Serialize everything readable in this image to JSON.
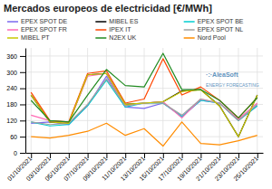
{
  "chart_data": {
    "type": "line",
    "title": "Mercados europeos de electricidad [€/MWh]",
    "categories": [
      "01/10/2021",
      "03/10/2021",
      "05/10/2021",
      "07/10/2021",
      "09/10/2021",
      "11/10/2021",
      "13/10/2021",
      "15/10/2021",
      "17/10/2021",
      "19/10/2021",
      "21/10/2021",
      "23/10/2021",
      "25/10/2021"
    ],
    "series": [
      {
        "name": "EPEX SPOT DE",
        "color": "#7b68ee",
        "values": [
          110,
          115,
          105,
          175,
          285,
          170,
          165,
          185,
          135,
          195,
          185,
          120,
          175
        ]
      },
      {
        "name": "MIBEL ES",
        "color": "#000000",
        "values": [
          215,
          115,
          110,
          290,
          295,
          180,
          185,
          190,
          230,
          235,
          175,
          60,
          215
        ]
      },
      {
        "name": "EPEX SPOT BE",
        "color": "#00ced1",
        "values": [
          115,
          100,
          105,
          175,
          270,
          170,
          185,
          185,
          135,
          195,
          185,
          120,
          175
        ]
      },
      {
        "name": "EPEX SPOT FR",
        "color": "#ff69b4",
        "values": [
          140,
          120,
          110,
          285,
          295,
          175,
          185,
          190,
          130,
          200,
          185,
          125,
          185
        ]
      },
      {
        "name": "IPEX IT",
        "color": "#ff4500",
        "values": [
          225,
          120,
          115,
          295,
          305,
          185,
          200,
          350,
          215,
          245,
          195,
          130,
          205
        ]
      },
      {
        "name": "EPEX SPOT NL",
        "color": "#a0a0a0",
        "values": [
          115,
          105,
          110,
          180,
          275,
          175,
          185,
          185,
          140,
          200,
          185,
          120,
          180
        ]
      },
      {
        "name": "MIBEL PT",
        "color": "#c8c800",
        "values": [
          215,
          115,
          110,
          290,
          295,
          180,
          185,
          190,
          228,
          234,
          174,
          60,
          214
        ]
      },
      {
        "name": "N2EX UK",
        "color": "#228b22",
        "values": [
          195,
          120,
          115,
          215,
          310,
          250,
          245,
          370,
          235,
          235,
          195,
          130,
          205
        ]
      },
      {
        "name": "Nord Pool",
        "color": "#ff8c00",
        "values": [
          60,
          55,
          65,
          80,
          110,
          65,
          90,
          25,
          115,
          35,
          30,
          45,
          65
        ]
      }
    ],
    "ylim": [
      0,
      390
    ],
    "yticks": [
      0,
      60,
      120,
      180,
      240,
      300,
      360
    ],
    "grid": true,
    "annotations": [
      {
        "text": "·:·AleaSoft"
      },
      {
        "text": "ENERGY FORECASTING"
      }
    ]
  }
}
